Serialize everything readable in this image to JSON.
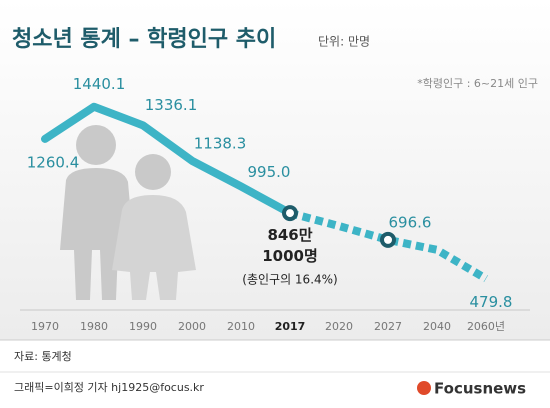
{
  "chart_data": {
    "type": "line",
    "title": "청소년 통계 – 학령인구 추이",
    "unit": "단위: 만명",
    "note": "*학령인구 : 6~21세 인구",
    "categories": [
      "1970",
      "1980",
      "1990",
      "2000",
      "2010",
      "2017",
      "2020",
      "2027",
      "2040",
      "2060년"
    ],
    "values": [
      1260.4,
      1440.1,
      1336.1,
      1138.3,
      995.0,
      846.1,
      774,
      696.6,
      641,
      479.8
    ],
    "value_labels": [
      "1260.4",
      "1440.1",
      "1336.1",
      "1138.3",
      "995.0",
      "846만 1000명",
      null,
      "696.6",
      null,
      "479.8"
    ],
    "annotation": "(총인구의 16.4%)",
    "color": "#3db4c6",
    "projection_start": "2017",
    "ylim": [
      400,
      1500
    ],
    "source": "자료: 통계청",
    "credit": "그래픽=이희정 기자 hj1925@focus.kr",
    "logo": "Focusnews"
  }
}
